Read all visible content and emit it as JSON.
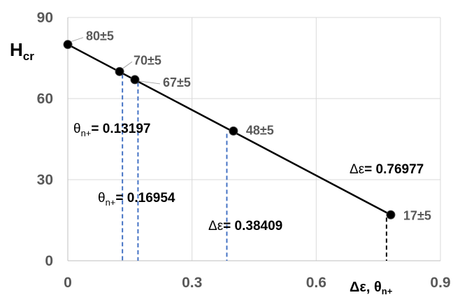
{
  "chart_data": {
    "type": "scatter",
    "ylabel": "H",
    "ylabel_sub": "cr",
    "xlabel": "Δε, θ",
    "xlabel_sub": "n+",
    "xlim": [
      0,
      0.9
    ],
    "ylim": [
      0,
      90
    ],
    "x_ticks": [
      0,
      0.3,
      0.6,
      0.9
    ],
    "x_tick_labels": [
      "0",
      "0.3",
      "0.6",
      "0.9"
    ],
    "y_ticks": [
      0,
      30,
      60,
      90
    ],
    "y_tick_labels": [
      "0",
      "30",
      "60",
      "90"
    ],
    "grid": true,
    "series": [
      {
        "points": [
          {
            "x": 0.0,
            "y": 80,
            "label": "80±5"
          },
          {
            "x": 0.125,
            "y": 70,
            "label": "70±5"
          },
          {
            "x": 0.162,
            "y": 67,
            "label": "67±5"
          },
          {
            "x": 0.4,
            "y": 48,
            "label": "48±5"
          },
          {
            "x": 0.78,
            "y": 17,
            "label": "17±5"
          }
        ]
      }
    ],
    "trendline": {
      "x": [
        0,
        0.78
      ],
      "y": [
        80,
        17
      ]
    },
    "drop_lines": [
      {
        "x": 0.13197,
        "y_top": 70,
        "color": "#4472C4",
        "style": "dashed"
      },
      {
        "x": 0.16954,
        "y_top": 67,
        "color": "#4472C4",
        "style": "dashed"
      },
      {
        "x": 0.38409,
        "y_top": 48,
        "color": "#4472C4",
        "style": "dashed"
      },
      {
        "x": 0.76977,
        "y_top": 17,
        "color": "#000000",
        "style": "dashed"
      }
    ],
    "annotations": [
      {
        "name": "theta1",
        "main": "θ",
        "sub": "n+",
        "value": "= 0.13197"
      },
      {
        "name": "theta2",
        "main": "θ",
        "sub": "n+",
        "value": "= 0.16954"
      },
      {
        "name": "deps1",
        "main": "Δε",
        "sub": "",
        "value": "= 0.38409"
      },
      {
        "name": "deps2",
        "main": "Δε",
        "sub": "",
        "value": "= 0.76977"
      }
    ],
    "colors": {
      "marker": "#000000",
      "line": "#000000",
      "grid": "#d9d9d9",
      "tick_text": "#595959",
      "dash_blue": "#4472C4"
    }
  }
}
